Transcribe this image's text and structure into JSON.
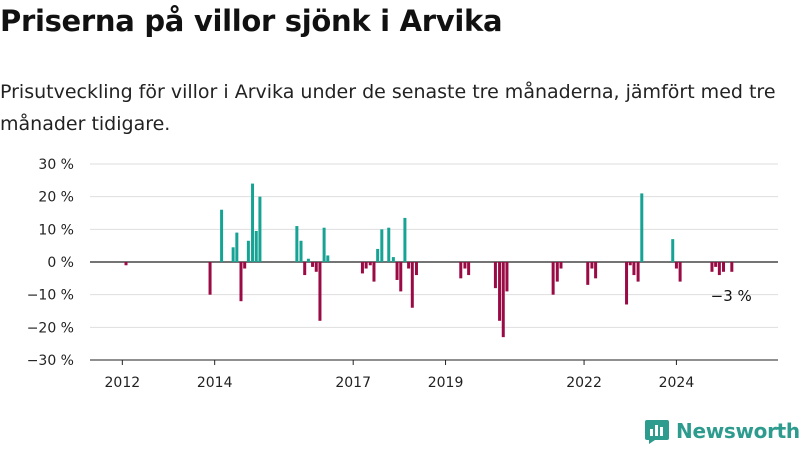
{
  "title": "Priserna på villor sjönk i Arvika",
  "subtitle": "Prisutveckling för villor i Arvika under de senaste tre månaderna, jämfört med tre månader tidigare.",
  "brand": "Newsworthy",
  "colors": {
    "positive": "#16a394",
    "negative": "#9a0a44",
    "brand": "#2d9b8e"
  },
  "chart_data": {
    "type": "bar",
    "ylim": [
      -30,
      30
    ],
    "xlim": [
      2011.3,
      2026.2
    ],
    "y_ticks": [
      30,
      20,
      10,
      0,
      -10,
      -20,
      -30
    ],
    "y_tick_labels": [
      "30 %",
      "20 %",
      "10 %",
      "0 %",
      "−10 %",
      "−20 %",
      "−30 %"
    ],
    "x_ticks": [
      2012,
      2014,
      2017,
      2019,
      2022,
      2024
    ],
    "x_tick_labels": [
      "2012",
      "2014",
      "2017",
      "2019",
      "2022",
      "2024"
    ],
    "grid": true,
    "annotation": "−3 %",
    "x": [
      2012.08,
      2013.9,
      2014.15,
      2014.4,
      2014.48,
      2014.57,
      2014.65,
      2014.73,
      2014.82,
      2014.9,
      2014.98,
      2015.78,
      2015.87,
      2015.95,
      2016.03,
      2016.12,
      2016.2,
      2016.28,
      2016.37,
      2016.45,
      2017.2,
      2017.28,
      2017.37,
      2017.45,
      2017.53,
      2017.62,
      2017.77,
      2017.87,
      2017.95,
      2018.03,
      2018.12,
      2018.2,
      2018.28,
      2018.37,
      2019.33,
      2019.42,
      2019.5,
      2020.08,
      2020.17,
      2020.25,
      2020.33,
      2021.33,
      2021.42,
      2021.5,
      2022.08,
      2022.17,
      2022.25,
      2022.92,
      2023.0,
      2023.08,
      2023.17,
      2023.25,
      2023.92,
      2024.0,
      2024.08,
      2024.77,
      2024.85,
      2024.93,
      2025.02,
      2025.2
    ],
    "values": [
      -1,
      -10,
      16,
      4.5,
      9,
      -12,
      -2,
      6.5,
      24,
      9.5,
      20,
      11,
      6.5,
      -4,
      1,
      -1.5,
      -3,
      -18,
      10.5,
      2,
      -3.5,
      -2,
      -1,
      -6,
      4,
      10,
      10.5,
      1.5,
      -5.5,
      -9,
      13.5,
      -2,
      -14,
      -4,
      -5,
      -2,
      -4,
      -8,
      -18,
      -23,
      -9,
      -10,
      -6,
      -2,
      -7,
      -2,
      -5,
      -13,
      -1,
      -4,
      -6,
      21,
      7,
      -2,
      -6,
      -3,
      -1.5,
      -4,
      -3,
      -3
    ]
  }
}
